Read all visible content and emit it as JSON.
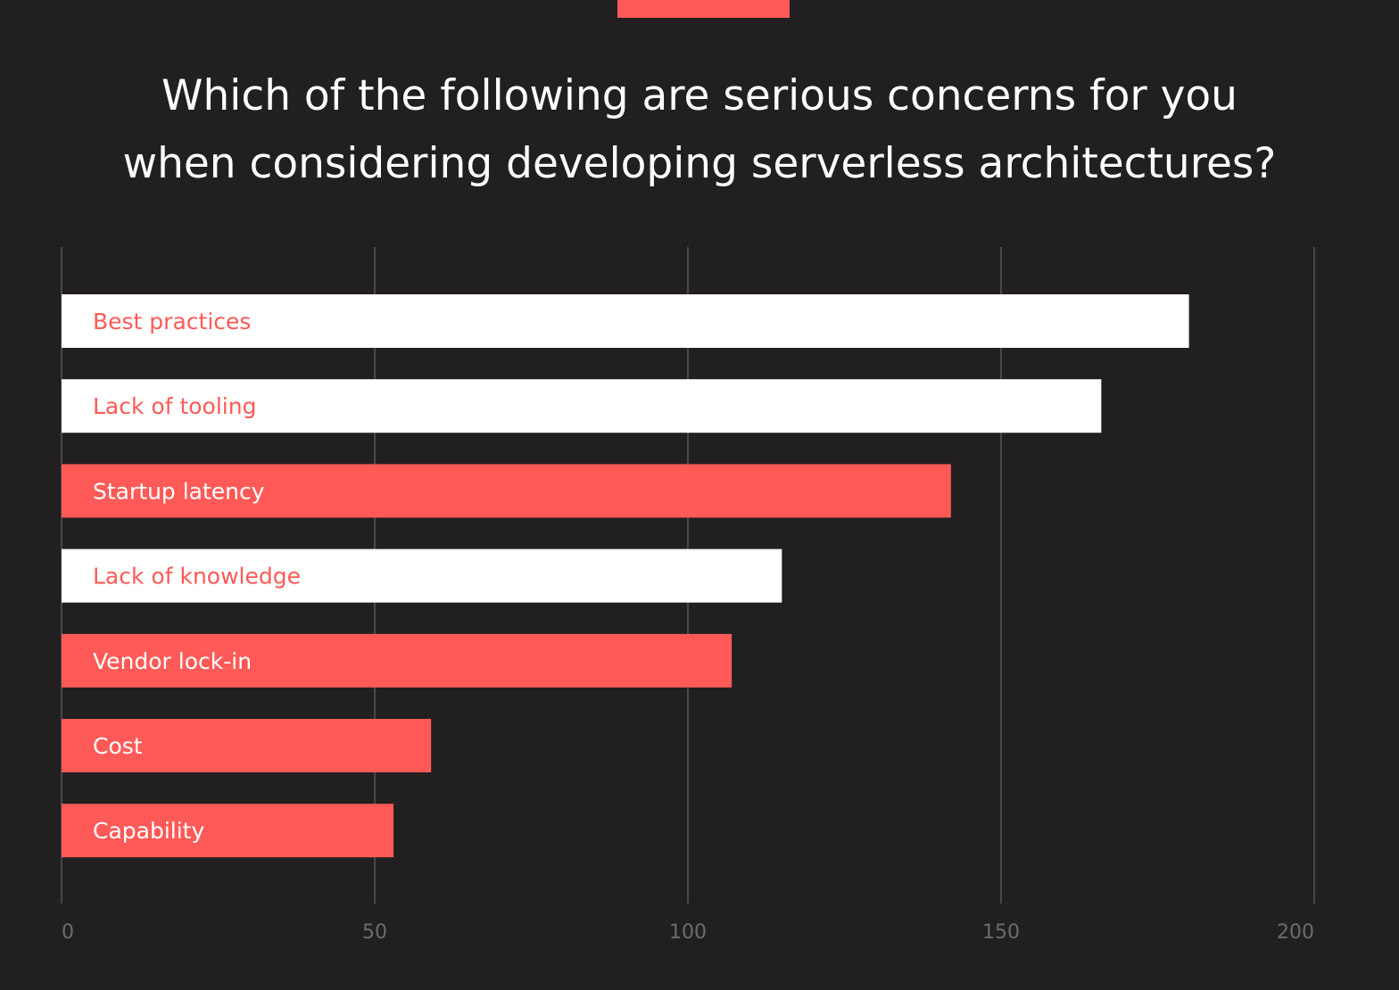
{
  "colors": {
    "background": "#221f20",
    "accent": "#ff5a57",
    "white": "#ffffff",
    "grid": "#58555a",
    "tick": "#6e6b6c"
  },
  "title_lines": [
    "Which of the following are serious concerns for you",
    "when considering developing serverless architectures?"
  ],
  "chart_data": {
    "type": "bar",
    "orientation": "horizontal",
    "categories": [
      "Best practices",
      "Lack of tooling",
      "Startup latency",
      "Lack of knowledge",
      "Vendor lock-in",
      "Cost",
      "Capability"
    ],
    "values": [
      180,
      166,
      142,
      115,
      107,
      59,
      53
    ],
    "bar_colors": [
      "white",
      "white",
      "accent",
      "white",
      "accent",
      "accent",
      "accent"
    ],
    "xlim": [
      0,
      200
    ],
    "xticks": [
      0,
      50,
      100,
      150,
      200
    ],
    "grid": true,
    "legend": "none"
  }
}
